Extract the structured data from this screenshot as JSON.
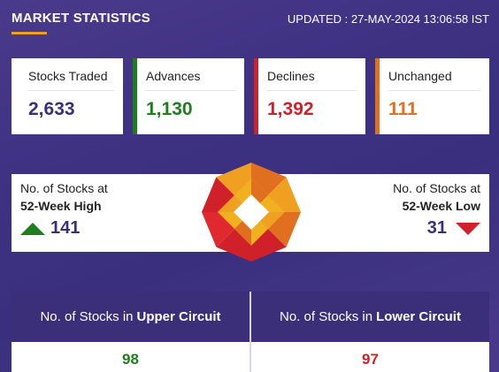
{
  "header": {
    "title": "MARKET STATISTICS",
    "updated": "UPDATED : 27-MAY-2024 13:06:58 IST"
  },
  "cards": [
    {
      "label": "Stocks Traded",
      "value": "2,633"
    },
    {
      "label": "Advances",
      "value": "1,130"
    },
    {
      "label": "Declines",
      "value": "1,392"
    },
    {
      "label": "Unchanged",
      "value": "111"
    }
  ],
  "week52": {
    "high": {
      "line1": "No. of Stocks at",
      "line2": "52-Week High",
      "value": "141"
    },
    "low": {
      "line1": "No. of Stocks at",
      "line2": "52-Week Low",
      "value": "31"
    }
  },
  "circuit": {
    "upper": {
      "prefix": "No. of Stocks in",
      "bold": "Upper Circuit",
      "value": "98"
    },
    "lower": {
      "prefix": "No. of Stocks in",
      "bold": "Lower Circuit",
      "value": "97"
    }
  },
  "colors": {
    "background": "#3e3182",
    "advances": "#1e7e1e",
    "declines": "#d0202a",
    "unchanged": "#e07020",
    "accent": "#f0a020"
  },
  "icons": {
    "logo": "octagon-logo-icon",
    "high": "triangle-up-icon",
    "low": "triangle-down-icon"
  }
}
